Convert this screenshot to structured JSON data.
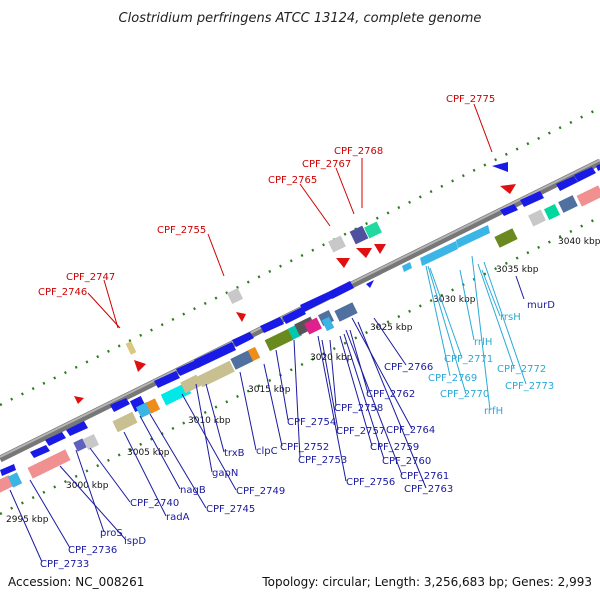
{
  "title": "Clostridium perfringens ATCC 13124, complete genome",
  "footer": {
    "accession": "Accession: NC_008261",
    "topology": "Topology: circular; Length: 3,256,683 bp; Genes: 2,993"
  },
  "colors": {
    "backbone": "#8a8a8a",
    "dots": "#2d7d1e",
    "red_label": "#d00000",
    "blue_label": "#1a1aa0",
    "cyan_label": "#2aaad8"
  },
  "ticks": [
    {
      "kbp": 2995,
      "label": "2995 kbp"
    },
    {
      "kbp": 3000,
      "label": "3000 kbp"
    },
    {
      "kbp": 3005,
      "label": "3005 kbp"
    },
    {
      "kbp": 3010,
      "label": "3010 kbp"
    },
    {
      "kbp": 3015,
      "label": "3015 kbp"
    },
    {
      "kbp": 3020,
      "label": "3020 kbp"
    },
    {
      "kbp": 3025,
      "label": "3025 kbp"
    },
    {
      "kbp": 3030,
      "label": "3030 kbp"
    },
    {
      "kbp": 3035,
      "label": "3035 kbp"
    },
    {
      "kbp": 3040,
      "label": "3040 kbp"
    }
  ],
  "gene_labels": {
    "red": [
      "CPF_2775",
      "CPF_2768",
      "CPF_2767",
      "CPF_2765",
      "CPF_2755",
      "CPF_2747",
      "CPF_2746"
    ],
    "blue": [
      "murD",
      "CPF_2766",
      "CPF_2762",
      "CPF_2764",
      "CPF_2758",
      "CPF_2757",
      "CPF_2759",
      "CPF_2760",
      "CPF_2761",
      "CPF_2763",
      "CPF_2754",
      "CPF_2752",
      "CPF_2753",
      "CPF_2756",
      "clpC",
      "trxB",
      "gapN",
      "CPF_2749",
      "CPF_2745",
      "nagB",
      "radA",
      "CPF_2740",
      "proS",
      "ispD",
      "CPF_2736",
      "CPF_2733"
    ],
    "cyan": [
      "rrsH",
      "rrlH",
      "CPF_2771",
      "CPF_2769",
      "CPF_2770",
      "rrfH",
      "CPF_2772",
      "CPF_2773"
    ]
  }
}
